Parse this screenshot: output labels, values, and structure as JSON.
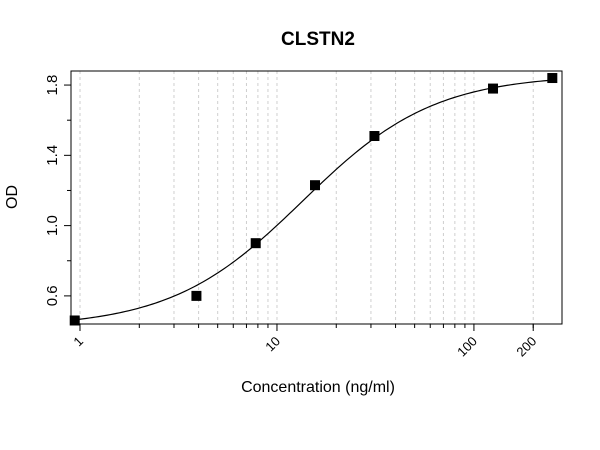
{
  "chart_data": {
    "type": "scatter",
    "title": "CLSTN2",
    "xlabel": "Concentration (ng/ml)",
    "ylabel": "OD",
    "x_scale": "log",
    "xlim": [
      0.9,
      280
    ],
    "ylim": [
      0.44,
      1.88
    ],
    "x_tick_labels": [
      {
        "value": 1,
        "label": "1"
      },
      {
        "value": 10,
        "label": "10"
      },
      {
        "value": 100,
        "label": "100"
      },
      {
        "value": 200,
        "label": "200"
      }
    ],
    "y_ticks": [
      {
        "value": 0.6,
        "label": "0.6"
      },
      {
        "value": 1.0,
        "label": "1.0"
      },
      {
        "value": 1.4,
        "label": "1.4"
      },
      {
        "value": 1.8,
        "label": "1.8"
      }
    ],
    "x_minor_ticks": [
      2,
      3,
      4,
      5,
      6,
      7,
      8,
      9,
      20,
      30,
      40,
      50,
      60,
      70,
      80,
      90,
      200
    ],
    "y_minor_ticks": [
      0.8,
      1.2,
      1.6
    ],
    "grid": "vertical dashed at log ticks",
    "series": [
      {
        "marker": "square",
        "points": [
          {
            "x": 0.94,
            "y": 0.46
          },
          {
            "x": 3.9,
            "y": 0.6
          },
          {
            "x": 7.8,
            "y": 0.9
          },
          {
            "x": 15.6,
            "y": 1.23
          },
          {
            "x": 31.25,
            "y": 1.51
          },
          {
            "x": 125,
            "y": 1.78
          },
          {
            "x": 250,
            "y": 1.84
          }
        ]
      }
    ],
    "fit_curve": {
      "model": "4PL",
      "bottom": 0.42,
      "top": 1.86,
      "ec50": 13.5,
      "hill": 1.3
    }
  }
}
